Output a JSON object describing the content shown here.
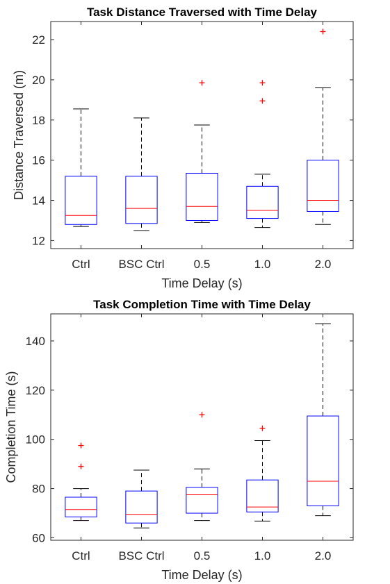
{
  "chart_data": [
    {
      "type": "box",
      "title": "Task Distance Traversed with Time Delay",
      "xlabel": "Time Delay (s)",
      "ylabel": "Distance Traversed (m)",
      "categories": [
        "Ctrl",
        "BSC Ctrl",
        "0.5",
        "1.0",
        "2.0"
      ],
      "ylim": [
        11.6,
        22.9
      ],
      "yticks": [
        12,
        14,
        16,
        18,
        20,
        22
      ],
      "grid": false,
      "colors": {
        "box": "#0000ff",
        "median": "#ff0000",
        "whisker": "#000000",
        "outlier": "#ff0000"
      },
      "boxes": [
        {
          "category": "Ctrl",
          "whisker_low": 12.7,
          "q1": 12.8,
          "median": 13.25,
          "q3": 15.2,
          "whisker_high": 18.55,
          "outliers": []
        },
        {
          "category": "BSC Ctrl",
          "whisker_low": 12.5,
          "q1": 12.85,
          "median": 13.6,
          "q3": 15.2,
          "whisker_high": 18.1,
          "outliers": []
        },
        {
          "category": "0.5",
          "whisker_low": 12.9,
          "q1": 13.0,
          "median": 13.7,
          "q3": 15.35,
          "whisker_high": 17.75,
          "outliers": [
            19.85
          ]
        },
        {
          "category": "1.0",
          "whisker_low": 12.65,
          "q1": 13.1,
          "median": 13.5,
          "q3": 14.7,
          "whisker_high": 15.3,
          "outliers": [
            18.95,
            19.85
          ]
        },
        {
          "category": "2.0",
          "whisker_low": 12.8,
          "q1": 13.45,
          "median": 14.0,
          "q3": 16.0,
          "whisker_high": 19.6,
          "outliers": [
            22.4
          ]
        }
      ]
    },
    {
      "type": "box",
      "title": "Task Completion Time with Time Delay",
      "xlabel": "Time Delay (s)",
      "ylabel": "Completion Time (s)",
      "categories": [
        "Ctrl",
        "BSC Ctrl",
        "0.5",
        "1.0",
        "2.0"
      ],
      "ylim": [
        59,
        151
      ],
      "yticks": [
        60,
        80,
        100,
        120,
        140
      ],
      "grid": false,
      "colors": {
        "box": "#0000ff",
        "median": "#ff0000",
        "whisker": "#000000",
        "outlier": "#ff0000"
      },
      "boxes": [
        {
          "category": "Ctrl",
          "whisker_low": 67,
          "q1": 68.5,
          "median": 71.5,
          "q3": 76.5,
          "whisker_high": 80,
          "outliers": [
            89,
            97.5
          ]
        },
        {
          "category": "BSC Ctrl",
          "whisker_low": 64,
          "q1": 66,
          "median": 69.5,
          "q3": 79,
          "whisker_high": 87.5,
          "outliers": []
        },
        {
          "category": "0.5",
          "whisker_low": 67,
          "q1": 70,
          "median": 77.5,
          "q3": 80.5,
          "whisker_high": 88,
          "outliers": [
            110
          ]
        },
        {
          "category": "1.0",
          "whisker_low": 66.8,
          "q1": 70.5,
          "median": 72.5,
          "q3": 83.5,
          "whisker_high": 99.5,
          "outliers": [
            104.5
          ]
        },
        {
          "category": "2.0",
          "whisker_low": 69,
          "q1": 73,
          "median": 83,
          "q3": 109.5,
          "whisker_high": 147,
          "outliers": []
        }
      ]
    }
  ]
}
